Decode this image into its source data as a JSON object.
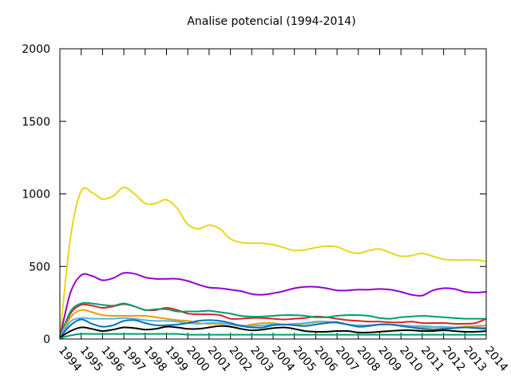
{
  "chart_data": {
    "type": "line",
    "title": "Analise potencial (1994-2014)",
    "xlabel": "",
    "ylabel": "",
    "xlim": [
      1994,
      2014
    ],
    "ylim": [
      0,
      2000
    ],
    "yticks": [
      0,
      500,
      1000,
      1500,
      2000
    ],
    "x_tick_labels": [
      "1994",
      "1995",
      "1996",
      "1997",
      "1998",
      "1999",
      "2000",
      "2001",
      "2002",
      "2003",
      "2004",
      "2005",
      "2006",
      "2007",
      "2008",
      "2009",
      "2010",
      "2011",
      "2012",
      "2013",
      "2014"
    ],
    "grid": false,
    "legend": "none",
    "x": [
      1994,
      1994.5,
      1995,
      1995.5,
      1996,
      1996.5,
      1997,
      1997.5,
      1998,
      1998.5,
      1999,
      1999.5,
      2000,
      2000.5,
      2001,
      2001.5,
      2002,
      2002.5,
      2003,
      2003.5,
      2004,
      2004.5,
      2005,
      2005.5,
      2006,
      2006.5,
      2007,
      2007.5,
      2008,
      2008.5,
      2009,
      2009.5,
      2010,
      2010.5,
      2011,
      2011.5,
      2012,
      2012.5,
      2013,
      2013.5,
      2014
    ],
    "series": [
      {
        "color": "#e6d71c",
        "values": [
          10,
          700,
          1020,
          1010,
          965,
          985,
          1045,
          1000,
          935,
          935,
          960,
          900,
          790,
          760,
          785,
          760,
          690,
          665,
          660,
          660,
          650,
          630,
          610,
          615,
          630,
          640,
          635,
          605,
          590,
          610,
          620,
          595,
          570,
          575,
          590,
          570,
          550,
          545,
          545,
          545,
          535
        ]
      },
      {
        "color": "#9400d3",
        "values": [
          10,
          320,
          440,
          435,
          405,
          420,
          455,
          450,
          425,
          415,
          415,
          415,
          400,
          375,
          355,
          350,
          340,
          330,
          310,
          305,
          315,
          330,
          350,
          360,
          360,
          350,
          335,
          335,
          340,
          340,
          345,
          340,
          325,
          305,
          300,
          335,
          350,
          345,
          325,
          320,
          325
        ]
      },
      {
        "color": "#d62728",
        "values": [
          10,
          175,
          235,
          230,
          215,
          225,
          240,
          225,
          200,
          200,
          215,
          200,
          175,
          170,
          170,
          165,
          140,
          140,
          145,
          145,
          140,
          135,
          140,
          145,
          155,
          150,
          140,
          130,
          125,
          120,
          120,
          115,
          115,
          120,
          110,
          110,
          110,
          105,
          105,
          110,
          140
        ]
      },
      {
        "color": "#009e73",
        "values": [
          10,
          190,
          245,
          245,
          235,
          230,
          245,
          225,
          200,
          205,
          205,
          190,
          190,
          190,
          195,
          185,
          175,
          160,
          155,
          155,
          160,
          165,
          165,
          160,
          150,
          150,
          160,
          165,
          165,
          160,
          145,
          140,
          150,
          155,
          160,
          155,
          150,
          145,
          140,
          140,
          140
        ]
      },
      {
        "color": "#e69f00",
        "values": [
          10,
          150,
          200,
          185,
          165,
          160,
          160,
          160,
          160,
          150,
          140,
          130,
          125,
          110,
          105,
          105,
          100,
          90,
          100,
          110,
          110,
          100,
          100,
          105,
          115,
          120,
          115,
          100,
          95,
          95,
          100,
          100,
          95,
          90,
          80,
          80,
          80,
          80,
          85,
          90,
          95
        ]
      },
      {
        "color": "#56b4e9",
        "values": [
          10,
          120,
          145,
          140,
          140,
          140,
          145,
          140,
          130,
          125,
          125,
          120,
          110,
          105,
          110,
          110,
          100,
          95,
          90,
          95,
          100,
          100,
          105,
          110,
          120,
          120,
          110,
          100,
          95,
          95,
          100,
          100,
          95,
          90,
          90,
          85,
          85,
          80,
          80,
          80,
          80
        ]
      },
      {
        "color": "#0072b2",
        "values": [
          10,
          95,
          135,
          105,
          85,
          95,
          125,
          130,
          110,
          95,
          95,
          100,
          110,
          125,
          130,
          125,
          110,
          90,
          80,
          80,
          95,
          100,
          95,
          90,
          100,
          110,
          115,
          100,
          85,
          90,
          100,
          100,
          90,
          80,
          70,
          65,
          70,
          75,
          80,
          75,
          70
        ]
      },
      {
        "color": "#000000",
        "values": [
          10,
          55,
          80,
          70,
          55,
          65,
          80,
          75,
          65,
          70,
          85,
          80,
          70,
          70,
          80,
          90,
          85,
          70,
          60,
          65,
          75,
          80,
          70,
          55,
          50,
          50,
          55,
          55,
          45,
          45,
          50,
          55,
          60,
          60,
          55,
          55,
          60,
          55,
          50,
          50,
          55
        ]
      },
      {
        "color": "#009e73",
        "values": [
          5,
          25,
          35,
          35,
          35,
          35,
          35,
          35,
          35,
          35,
          35,
          35,
          30,
          30,
          30,
          30,
          30,
          30,
          30,
          30,
          30,
          30,
          30,
          30,
          30,
          30,
          30,
          30,
          30,
          30,
          30,
          30,
          30,
          30,
          30,
          30,
          30,
          30,
          30,
          30,
          30
        ]
      }
    ]
  }
}
